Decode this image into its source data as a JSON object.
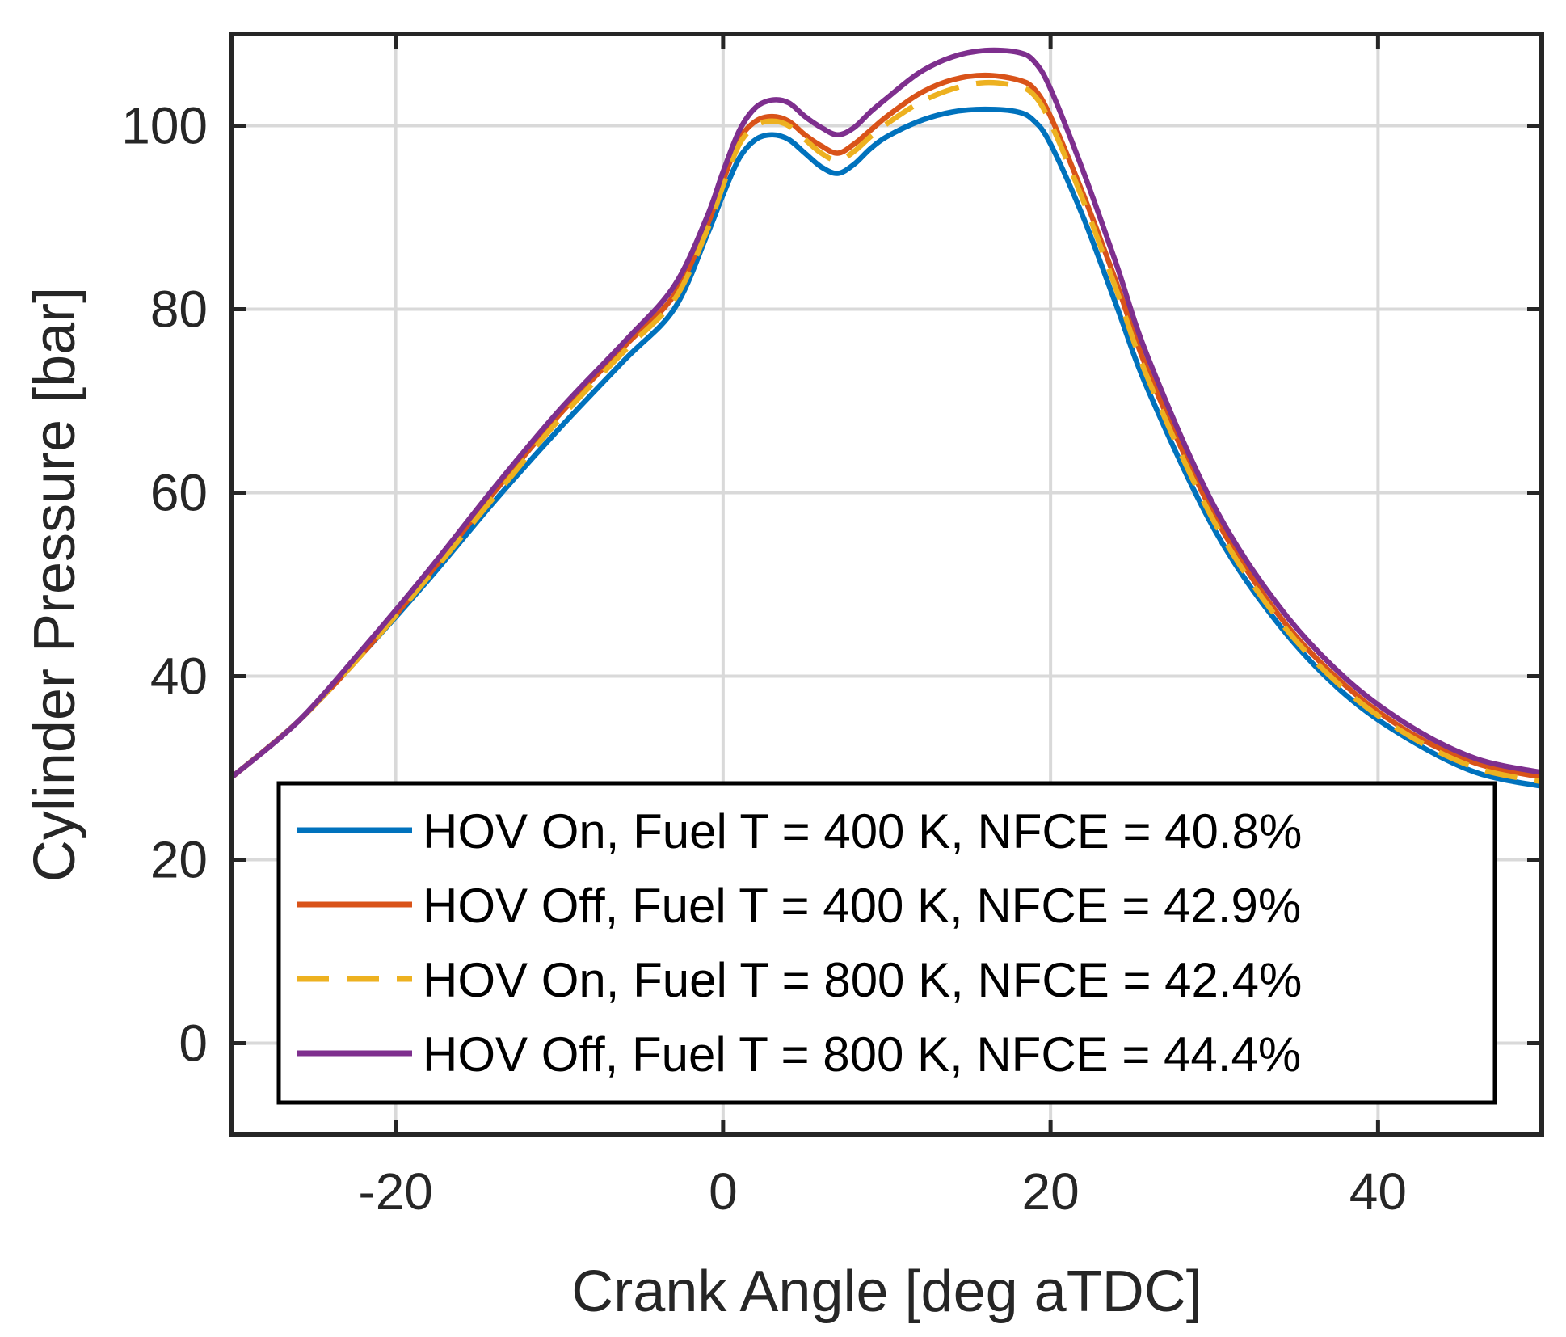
{
  "chart_data": {
    "type": "line",
    "title": "",
    "xlabel": "Crank Angle [deg aTDC]",
    "ylabel": "Cylinder Pressure [bar]",
    "xlim": [
      -30,
      50
    ],
    "ylim": [
      -10,
      110
    ],
    "xticks": [
      -20,
      0,
      20,
      40
    ],
    "yticks": [
      0,
      20,
      40,
      60,
      80,
      100
    ],
    "grid": true,
    "legend_position": "bottom",
    "series": [
      {
        "name": "HOV On, Fuel T = 400 K, NFCE = 40.8%",
        "color": "#0072BD",
        "dash": "solid",
        "x": [
          -30,
          -26,
          -22,
          -18,
          -14,
          -10,
          -6,
          -3,
          -1,
          0,
          1,
          2,
          3,
          4,
          5,
          6,
          7,
          8,
          9,
          10,
          12,
          14,
          16,
          18,
          19,
          20,
          22,
          24,
          26,
          30,
          34,
          38,
          42,
          46,
          50
        ],
        "y": [
          29,
          35,
          42.5,
          50.5,
          59,
          67,
          74.5,
          80,
          88,
          92.5,
          96.5,
          98.5,
          99,
          98.5,
          97,
          95.5,
          94.8,
          95.8,
          97.5,
          98.8,
          100.5,
          101.5,
          101.8,
          101.5,
          100.5,
          98,
          90,
          80.5,
          71,
          56,
          45.5,
          38,
          33,
          29.5,
          28
        ]
      },
      {
        "name": "HOV Off, Fuel T = 400 K, NFCE = 42.9%",
        "color": "#D95319",
        "dash": "solid",
        "x": [
          -30,
          -26,
          -22,
          -18,
          -14,
          -10,
          -6,
          -3,
          -1,
          0,
          1,
          2,
          3,
          4,
          5,
          6,
          7,
          8,
          9,
          10,
          12,
          14,
          16,
          18,
          19,
          20,
          22,
          24,
          26,
          30,
          34,
          38,
          42,
          46,
          50
        ],
        "y": [
          29,
          35,
          42.5,
          51,
          60,
          68.5,
          76,
          81.5,
          89,
          94,
          98.5,
          100.5,
          101,
          100.5,
          99,
          97.8,
          97,
          98,
          99.5,
          101,
          103.5,
          105,
          105.5,
          105,
          104,
          101,
          92.5,
          83,
          73,
          57.5,
          46.5,
          39,
          33.8,
          30.5,
          29
        ]
      },
      {
        "name": "HOV On, Fuel T = 800 K, NFCE = 42.4%",
        "color": "#EDB120",
        "dash": "dashed",
        "x": [
          -30,
          -26,
          -22,
          -18,
          -14,
          -10,
          -6,
          -3,
          -1,
          0,
          1,
          2,
          3,
          4,
          5,
          6,
          7,
          8,
          9,
          10,
          12,
          14,
          16,
          18,
          19,
          20,
          22,
          24,
          26,
          30,
          34,
          38,
          42,
          46,
          50
        ],
        "y": [
          29,
          35,
          42.5,
          50.8,
          59.5,
          68,
          75.5,
          81,
          88.5,
          93.5,
          98,
          100,
          100.5,
          100,
          98.5,
          97,
          96.2,
          97.2,
          98.8,
          100.2,
          102.5,
          104,
          104.7,
          104.3,
          103.3,
          100.3,
          91.8,
          82.2,
          72.2,
          56.8,
          46,
          38.5,
          33.4,
          30,
          28.5
        ]
      },
      {
        "name": "HOV Off, Fuel T = 800 K, NFCE = 44.4%",
        "color": "#7E2F8E",
        "dash": "solid",
        "x": [
          -30,
          -26,
          -22,
          -18,
          -14,
          -10,
          -6,
          -3,
          -1,
          0,
          1,
          2,
          3,
          4,
          5,
          6,
          7,
          8,
          9,
          10,
          12,
          14,
          16,
          18,
          19,
          20,
          22,
          24,
          26,
          30,
          34,
          38,
          42,
          46,
          50
        ],
        "y": [
          29,
          35,
          43,
          51.5,
          60.5,
          69,
          76.5,
          82.5,
          90,
          95,
          99.5,
          102,
          102.8,
          102.5,
          101,
          99.8,
          99,
          99.8,
          101.5,
          103,
          105.8,
          107.5,
          108.2,
          108,
          107,
          104,
          95,
          85,
          74.5,
          58.5,
          47.5,
          39.8,
          34.5,
          31,
          29.5
        ]
      }
    ]
  }
}
